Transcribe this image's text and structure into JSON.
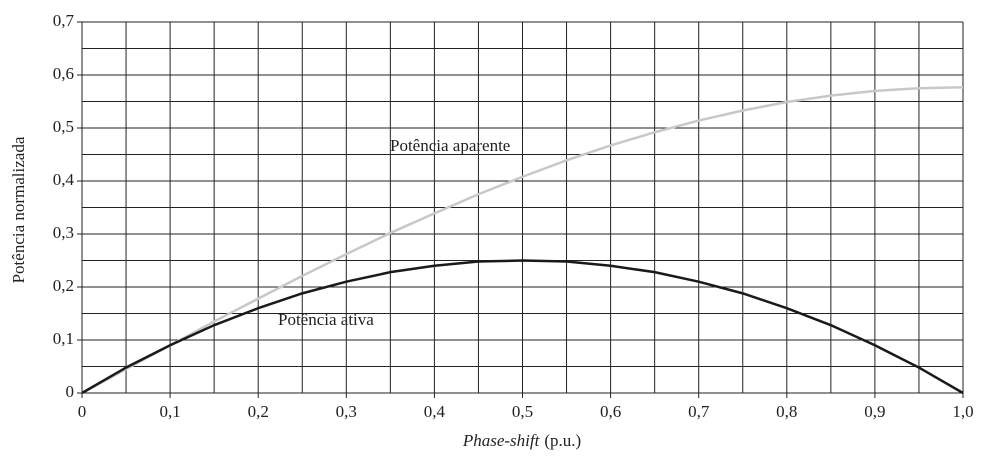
{
  "chart_data": {
    "type": "line",
    "ylabel": "Potência normalizada",
    "xlabel": [
      "Phase-shift",
      "(p.u.)"
    ],
    "annotations": [
      "Potência aparente",
      "Potência ativa"
    ],
    "x": [
      0,
      0.05,
      0.1,
      0.15,
      0.2,
      0.25,
      0.3,
      0.35,
      0.4,
      0.45,
      0.5,
      0.55,
      0.6,
      0.65,
      0.7,
      0.75,
      0.8,
      0.85,
      0.9,
      0.95,
      1
    ],
    "series": [
      {
        "name": "Potência aparente",
        "color": "#c8c8c8",
        "values": [
          0,
          0.045,
          0.09,
          0.135,
          0.178,
          0.221,
          0.262,
          0.302,
          0.339,
          0.375,
          0.408,
          0.439,
          0.467,
          0.492,
          0.514,
          0.533,
          0.549,
          0.561,
          0.57,
          0.575,
          0.577
        ]
      },
      {
        "name": "Potência ativa",
        "color": "#1a1a1a",
        "values": [
          0,
          0.048,
          0.09,
          0.128,
          0.16,
          0.188,
          0.21,
          0.228,
          0.24,
          0.248,
          0.25,
          0.248,
          0.24,
          0.228,
          0.21,
          0.188,
          0.16,
          0.128,
          0.09,
          0.048,
          0
        ]
      }
    ],
    "xlim": [
      0,
      1
    ],
    "ylim": [
      0,
      0.7
    ],
    "xticks": [
      0,
      {
        "value": 0.1,
        "label": "0,1"
      },
      {
        "value": 0.2,
        "label": "0,2"
      },
      {
        "value": 0.3,
        "label": "0,3"
      },
      {
        "value": 0.4,
        "label": "0,4"
      },
      {
        "value": 0.5,
        "label": "0,5"
      },
      {
        "value": 0.6,
        "label": "0,6"
      },
      {
        "value": 0.7,
        "label": "0,7"
      },
      {
        "value": 0.8,
        "label": "0,8"
      },
      {
        "value": 0.9,
        "label": "0,9"
      },
      {
        "value": 1,
        "label": "1,0"
      }
    ],
    "yticks": [
      0,
      {
        "value": 0.1,
        "label": "0,1"
      },
      {
        "value": 0.2,
        "label": "0,2"
      },
      {
        "value": 0.3,
        "label": "0,3"
      },
      {
        "value": 0.4,
        "label": "0,4"
      },
      {
        "value": 0.5,
        "label": "0,5"
      },
      {
        "value": 0.6,
        "label": "0,6"
      },
      {
        "value": 0.7,
        "label": "0,7"
      }
    ],
    "xgrid": [
      0,
      0.05,
      0.1,
      0.15,
      0.2,
      0.25,
      0.3,
      0.35,
      0.4,
      0.45,
      0.5,
      0.55,
      0.6,
      0.65,
      0.7,
      0.75,
      0.8,
      0.85,
      0.9,
      0.95,
      1
    ],
    "ygrid": [
      0,
      0.05,
      0.1,
      0.15,
      0.2,
      0.25,
      0.3,
      0.35,
      0.4,
      0.45,
      0.5,
      0.55,
      0.6,
      0.65,
      0.7
    ],
    "grid": true
  }
}
